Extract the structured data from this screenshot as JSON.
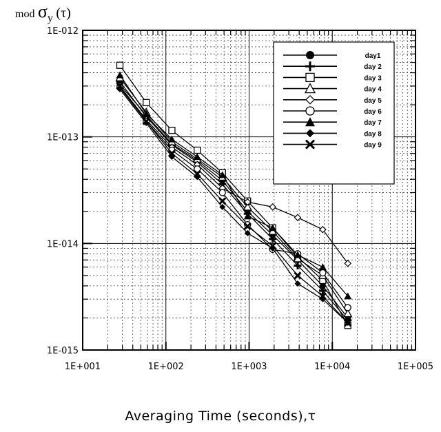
{
  "chart_data": {
    "type": "line",
    "title": "",
    "ylabel_prefix": "mod",
    "ylabel_symbol": "σ",
    "ylabel_subscript": "y",
    "ylabel_suffix": "(τ)",
    "xlabel": "Averaging Time (seconds),τ",
    "x_scale": "log",
    "y_scale": "log",
    "xlim": [
      10,
      100000
    ],
    "ylim": [
      1e-15,
      1e-12
    ],
    "x_ticks": [
      10,
      100,
      1000,
      10000,
      100000
    ],
    "x_tick_labels": [
      "1E+001",
      "1E+002",
      "1E+003",
      "1E+004",
      "1E+005"
    ],
    "y_ticks": [
      1e-15,
      1e-14,
      1e-13,
      1e-12
    ],
    "y_tick_labels": [
      "1E-015",
      "1E-014",
      "1E-013",
      "1E-012"
    ],
    "grid": true,
    "legend_position": "top-right",
    "x": [
      28,
      58,
      118,
      238,
      478,
      958,
      1918,
      3838,
      7678,
      15358
    ],
    "series": [
      {
        "name": "day1",
        "marker": "circle-filled",
        "values": [
          3.1e-13,
          1.6e-13,
          8.6e-14,
          6e-14,
          3.9e-14,
          2e-14,
          1.2e-14,
          7e-15,
          4e-15,
          2e-15
        ]
      },
      {
        "name": "day 2",
        "marker": "plus",
        "values": [
          3.3e-13,
          1.55e-13,
          8.4e-14,
          5.8e-14,
          3.6e-14,
          1.9e-14,
          1.1e-14,
          6.2e-15,
          3.6e-15,
          1.9e-15
        ]
      },
      {
        "name": "day 3",
        "marker": "square-open",
        "values": [
          4.7e-13,
          2.1e-13,
          1.15e-13,
          7.5e-14,
          4.6e-14,
          2.5e-14,
          1.4e-14,
          7.5e-15,
          4.5e-15,
          1.7e-15
        ]
      },
      {
        "name": "day 4",
        "marker": "triangle-open",
        "values": [
          3.6e-13,
          1.7e-13,
          9e-14,
          6.2e-14,
          4.2e-14,
          2.2e-14,
          1.3e-14,
          7.2e-15,
          5e-15,
          2.2e-15
        ]
      },
      {
        "name": "day 5",
        "marker": "diamond-open",
        "values": [
          3e-13,
          1.45e-13,
          8e-14,
          5.5e-14,
          3.3e-14,
          2.45e-14,
          2.2e-14,
          1.75e-14,
          1.35e-14,
          6.5e-15
        ]
      },
      {
        "name": "day 6",
        "marker": "circle-open",
        "values": [
          2.9e-13,
          1.4e-13,
          7.5e-14,
          5e-14,
          3e-14,
          1.5e-14,
          8.8e-15,
          8e-15,
          5.3e-15,
          2.5e-15
        ]
      },
      {
        "name": "day 7",
        "marker": "triangle-filled",
        "values": [
          3.8e-13,
          1.65e-13,
          9.5e-14,
          6.5e-14,
          4.4e-14,
          1.8e-14,
          1.4e-14,
          7.8e-15,
          6e-15,
          3.2e-15
        ]
      },
      {
        "name": "day 8",
        "marker": "diamond-filled",
        "values": [
          2.8e-13,
          1.35e-13,
          6.5e-14,
          4.2e-14,
          2.2e-14,
          1.25e-14,
          9e-15,
          4.2e-15,
          3e-15,
          1.8e-15
        ]
      },
      {
        "name": "day 9",
        "marker": "x",
        "values": [
          3e-13,
          1.4e-13,
          7e-14,
          4.5e-14,
          2.5e-14,
          1.45e-14,
          9.5e-15,
          5e-15,
          3.2e-15,
          1.8e-15
        ]
      }
    ]
  }
}
